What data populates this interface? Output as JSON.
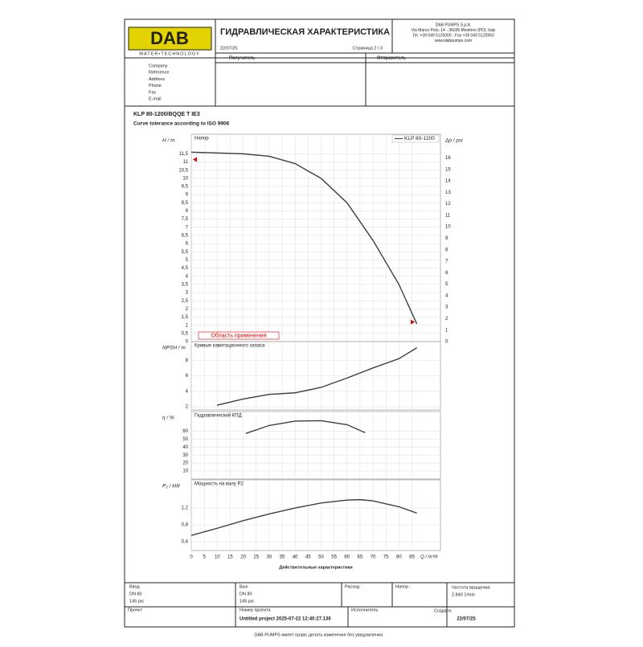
{
  "header": {
    "logo": "DAB",
    "logo_sub": "WATER•TECHNOLOGY",
    "title": "ГИДРАВЛИЧЕСКАЯ ХАРАКТЕРИСТИКА",
    "date": "22/07/25",
    "page": "Страница 2 / 3",
    "company_lines": [
      "DAB PUMPS S.p.A.",
      "Via Marco Polo, 14 - 35035 Mestrino (PD), Italy",
      "Tel. +39 049 5125000 - Fax +39 049 5125950",
      "www.dabpumps.com"
    ]
  },
  "recipient": "Получатель",
  "sender": "Отправитель",
  "fields": [
    "Company",
    "Reference",
    "Address",
    "Phone",
    "Fax",
    "E-mail"
  ],
  "pump": "KLP 80-1200/BQQE T IE3",
  "tolerance": "Curve tolerance according to ISO 9906",
  "chart_data": [
    {
      "type": "line",
      "title": "Напор",
      "ylabel": "H / m",
      "y2label": "Δp / psi",
      "annotation": "Область применения",
      "legend": "upper right",
      "x": [
        0,
        10,
        20,
        30,
        40,
        50,
        60,
        70,
        80,
        86.9
      ],
      "series": [
        {
          "name": "KLP 80-1200",
          "color": "#3a3f4a",
          "values": [
            11.6,
            11.55,
            11.5,
            11.35,
            10.9,
            10.0,
            8.5,
            6.2,
            3.5,
            1.08
          ]
        }
      ],
      "xlim": [
        0,
        96
      ],
      "xticks": [
        0,
        5,
        10,
        15,
        20,
        25,
        30,
        35,
        40,
        45,
        50,
        55,
        60,
        65,
        70,
        75,
        80,
        85
      ],
      "ylim": [
        0,
        12.7
      ],
      "yticks": [
        0,
        {
          "value": 0.5,
          "label": "0,5"
        },
        1,
        {
          "value": 1.5,
          "label": "1,5"
        },
        2,
        {
          "value": 2.5,
          "label": "2,5"
        },
        3,
        {
          "value": 3.5,
          "label": "3,5"
        },
        4,
        {
          "value": 4.5,
          "label": "4,5"
        },
        5,
        {
          "value": 5.5,
          "label": "5,5"
        },
        6,
        {
          "value": 6.5,
          "label": "6,5"
        },
        7,
        {
          "value": 7.5,
          "label": "7,5"
        },
        8,
        {
          "value": 8.5,
          "label": "8,5"
        },
        9,
        {
          "value": 9.5,
          "label": "9,5"
        },
        10,
        {
          "value": 10.5,
          "label": "10,5"
        },
        11,
        {
          "value": 11.5,
          "label": "11,5"
        }
      ],
      "y2lim": [
        0,
        18.06
      ],
      "y2ticks": [
        0,
        1,
        2,
        3,
        4,
        5,
        6,
        7,
        8,
        9,
        10,
        11,
        12,
        13,
        14,
        15,
        16
      ],
      "grid": true
    },
    {
      "type": "line",
      "title": "Кривые кавитационного запаса",
      "ylabel": "NPSH / m",
      "x": [
        9.9,
        20,
        30,
        40,
        50,
        60,
        70,
        80,
        86.9
      ],
      "series": [
        {
          "name": "NPSH",
          "color": "#3a3f4a",
          "values": [
            2.2,
            3.0,
            3.6,
            3.8,
            4.5,
            5.7,
            7.0,
            8.2,
            9.6
          ]
        }
      ],
      "xlim": [
        0,
        96
      ],
      "xticks": [
        0,
        5,
        10,
        15,
        20,
        25,
        30,
        35,
        40,
        45,
        50,
        55,
        60,
        65,
        70,
        75,
        80,
        85
      ],
      "ylim": [
        1.6,
        10.4
      ],
      "yticks": [
        2,
        4,
        6,
        8
      ],
      "grid": true
    },
    {
      "type": "line",
      "title": "Гидравлический КПД",
      "ylabel": "η / %",
      "x": [
        21,
        30,
        40,
        50,
        60,
        67
      ],
      "series": [
        {
          "name": "η",
          "color": "#3a3f4a",
          "values": [
            57,
            67,
            72.5,
            73,
            68,
            58
          ]
        }
      ],
      "xlim": [
        0,
        96
      ],
      "xticks": [
        0,
        5,
        10,
        15,
        20,
        25,
        30,
        35,
        40,
        45,
        50,
        55,
        60,
        65,
        70,
        75,
        80,
        85
      ],
      "ylim": [
        0,
        84.5
      ],
      "yticks": [
        10,
        20,
        30,
        40,
        50,
        60
      ],
      "grid": true
    },
    {
      "type": "line",
      "title": "Мощность на валу P2",
      "ylabel": "P₂ / kW",
      "xlabel": "Q / m³/h",
      "xcaption": "Действительные характеристики",
      "x": [
        0,
        10,
        20,
        30,
        40,
        50,
        60,
        65,
        70,
        80,
        86.9
      ],
      "series": [
        {
          "name": "P2",
          "color": "#3a3f4a",
          "values": [
            0.55,
            0.72,
            0.9,
            1.06,
            1.2,
            1.32,
            1.39,
            1.4,
            1.37,
            1.23,
            1.08
          ]
        }
      ],
      "xlim": [
        0,
        96
      ],
      "xticks": [
        0,
        5,
        10,
        15,
        20,
        25,
        30,
        35,
        40,
        45,
        50,
        55,
        60,
        65,
        70,
        75,
        80,
        85
      ],
      "ylim": [
        0.19,
        1.87
      ],
      "yticks": [
        {
          "value": 0.4,
          "label": "0,4"
        },
        {
          "value": 0.8,
          "label": "0,8"
        },
        {
          "value": 1.2,
          "label": "1,2"
        }
      ],
      "grid": true
    }
  ],
  "footer": {
    "inlet": [
      "Ввод",
      "DN 80",
      "145 psi"
    ],
    "outlet": [
      "Вых",
      "DN 80",
      "145 psi"
    ],
    "flow": "Расход :",
    "head": "Напор :",
    "speed": [
      "Частота вращения",
      "2.840 1/min"
    ],
    "project": "Проект",
    "project_no": [
      "Номер проекта",
      "Untitled project 2025-07-22 12:40:27.136"
    ],
    "author": "Исполнитель",
    "created": [
      "Создано",
      "22/07/25"
    ],
    "note": "DAB PUMPS имеет право делать изменения без уведомления."
  }
}
